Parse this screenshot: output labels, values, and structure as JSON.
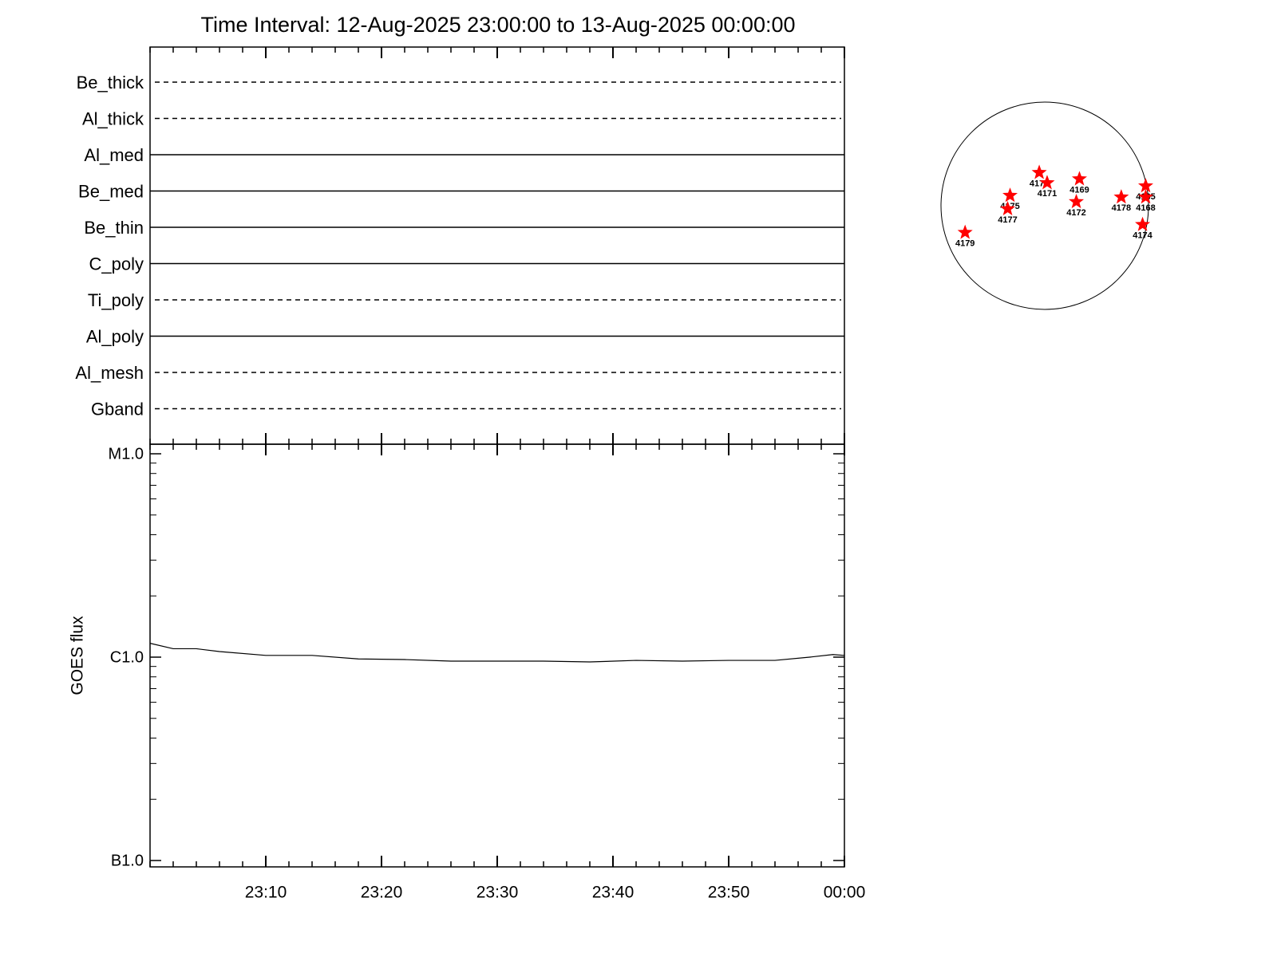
{
  "chart_data": {
    "type": "line",
    "title": "Time Interval: 12-Aug-2025 23:00:00 to 13-Aug-2025 00:00:00",
    "filters": [
      {
        "name": "Be_thick",
        "style": "dashed"
      },
      {
        "name": "Al_thick",
        "style": "dashed"
      },
      {
        "name": "Al_med",
        "style": "solid"
      },
      {
        "name": "Be_med",
        "style": "solid"
      },
      {
        "name": "Be_thin",
        "style": "solid"
      },
      {
        "name": "C_poly",
        "style": "solid"
      },
      {
        "name": "Ti_poly",
        "style": "dashed"
      },
      {
        "name": "Al_poly",
        "style": "solid"
      },
      {
        "name": "Al_mesh",
        "style": "dashed"
      },
      {
        "name": "Gband",
        "style": "dashed"
      }
    ],
    "ylabel": "GOES flux",
    "log_scale": true,
    "x": [
      0,
      2,
      4,
      6,
      10,
      14,
      18,
      22,
      26,
      30,
      34,
      38,
      42,
      46,
      50,
      54,
      57,
      59,
      60
    ],
    "series": [
      {
        "name": "GOES flux",
        "color": "#000000",
        "values": [
          1.17e-06,
          1.1e-06,
          1.1e-06,
          1.065e-06,
          1.02e-06,
          1.02e-06,
          9.8e-07,
          9.73e-07,
          9.56e-07,
          9.56e-07,
          9.56e-07,
          9.47e-07,
          9.64e-07,
          9.56e-07,
          9.64e-07,
          9.64e-07,
          1e-06,
          1.03e-06,
          1.02e-06
        ]
      }
    ],
    "xlim": [
      0,
      60
    ],
    "xticks": [
      {
        "value": 10,
        "label": "23:10"
      },
      {
        "value": 20,
        "label": "23:20"
      },
      {
        "value": 30,
        "label": "23:30"
      },
      {
        "value": 40,
        "label": "23:40"
      },
      {
        "value": 50,
        "label": "23:50"
      },
      {
        "value": 60,
        "label": "00:00"
      }
    ],
    "x_minor_step": 2,
    "ylim": [
      1e-07,
      1e-05
    ],
    "yticks": [
      {
        "value": 1e-07,
        "label": "B1.0"
      },
      {
        "value": 1e-06,
        "label": "C1.0"
      },
      {
        "value": 1e-05,
        "label": "M1.0"
      }
    ],
    "solar_disk": {
      "radius": 960,
      "marker_color": "#ff0000",
      "regions": [
        {
          "label": "4179",
          "x": -737,
          "y": -248
        },
        {
          "label": "4175",
          "x": -321,
          "y": 95
        },
        {
          "label": "4177",
          "x": -343,
          "y": -29
        },
        {
          "label": "4176",
          "x": -51,
          "y": 307
        },
        {
          "label": "4171",
          "x": 22,
          "y": 212
        },
        {
          "label": "4169",
          "x": 321,
          "y": 248
        },
        {
          "label": "4172",
          "x": 292,
          "y": 37
        },
        {
          "label": "4178",
          "x": 708,
          "y": 80
        },
        {
          "label": "4165",
          "x": 934,
          "y": 183
        },
        {
          "label": "4168",
          "x": 934,
          "y": 80
        },
        {
          "label": "4174",
          "x": 905,
          "y": -175
        }
      ]
    }
  }
}
